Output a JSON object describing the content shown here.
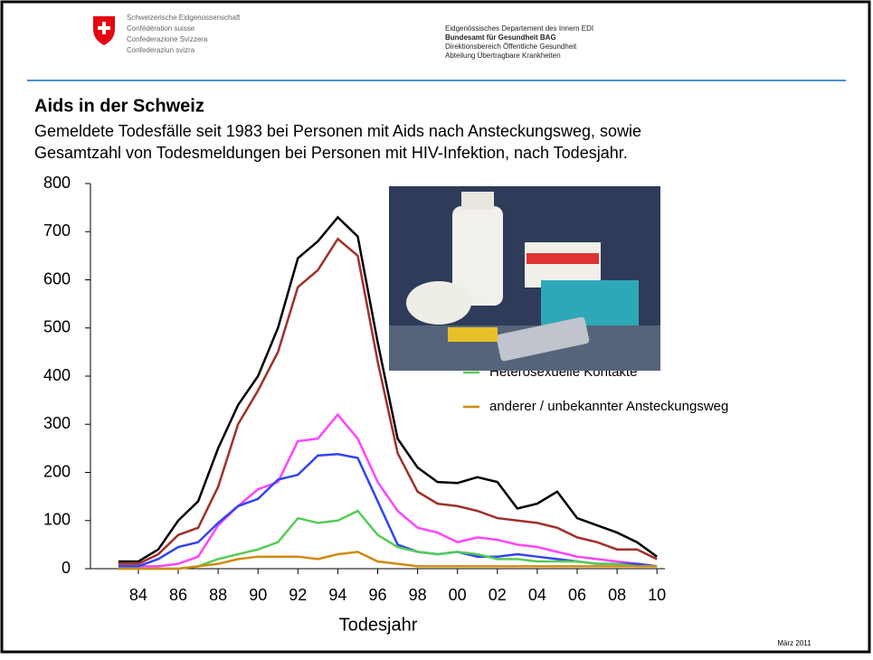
{
  "header": {
    "org_lines": [
      "Schweizerische Eidgenossenschaft",
      "Confédération suisse",
      "Confederazione Svizzera",
      "Confederaziun svizra"
    ],
    "dept_lines": [
      "Eidgenössisches Departement des Innern EDI",
      "Bundesamt für Gesundheit BAG",
      "Direktionsbereich Öffentliche Gesundheit",
      "Abteilung Übertragbare Krankheiten"
    ]
  },
  "footer": "März 2011",
  "chart_data": {
    "type": "line",
    "title": "Aids in der Schweiz",
    "subtitle": "Gemeldete Todesfälle seit 1983 bei Personen mit Aids nach Ansteckungsweg, sowie Gesamtzahl von Todesmeldungen bei Personen mit HIV-Infektion, nach Todesjahr.",
    "x_label": "Todesjahr",
    "x": [
      1983,
      1984,
      1985,
      1986,
      1987,
      1988,
      1989,
      1990,
      1991,
      1992,
      1993,
      1994,
      1995,
      1996,
      1997,
      1998,
      1999,
      2000,
      2001,
      2002,
      2003,
      2004,
      2005,
      2006,
      2007,
      2008,
      2009,
      2010
    ],
    "xlim": [
      1981.6,
      2010.4
    ],
    "xticks": [
      {
        "value": 1984,
        "label": "84"
      },
      {
        "value": 1986,
        "label": "86"
      },
      {
        "value": 1988,
        "label": "88"
      },
      {
        "value": 1990,
        "label": "90"
      },
      {
        "value": 1992,
        "label": "92"
      },
      {
        "value": 1994,
        "label": "94"
      },
      {
        "value": 1996,
        "label": "96"
      },
      {
        "value": 1998,
        "label": "98"
      },
      {
        "value": 2000,
        "label": "00"
      },
      {
        "value": 2002,
        "label": "02"
      },
      {
        "value": 2004,
        "label": "04"
      },
      {
        "value": 2006,
        "label": "06"
      },
      {
        "value": 2008,
        "label": "08"
      },
      {
        "value": 2010,
        "label": "10"
      }
    ],
    "ylim": [
      0,
      800
    ],
    "yticks": [
      0,
      100,
      200,
      300,
      400,
      500,
      600,
      700,
      800
    ],
    "series": [
      {
        "color": "#000000",
        "values": [
          15,
          15,
          40,
          100,
          140,
          250,
          340,
          400,
          500,
          645,
          680,
          730,
          690,
          470,
          270,
          210,
          180,
          178,
          190,
          180,
          125,
          135,
          160,
          105,
          90,
          75,
          55,
          25
        ]
      },
      {
        "color": "#a0302a",
        "values": [
          10,
          10,
          30,
          70,
          85,
          170,
          300,
          370,
          450,
          585,
          620,
          685,
          650,
          430,
          240,
          160,
          135,
          130,
          120,
          105,
          100,
          95,
          85,
          65,
          55,
          40,
          40,
          20
        ]
      },
      {
        "color": "#ff44ff",
        "values": [
          5,
          5,
          5,
          10,
          25,
          90,
          130,
          165,
          180,
          265,
          270,
          320,
          270,
          180,
          120,
          85,
          75,
          55,
          65,
          60,
          50,
          45,
          35,
          25,
          20,
          15,
          10,
          5
        ]
      },
      {
        "color": "#3344ee",
        "values": [
          5,
          5,
          20,
          45,
          55,
          95,
          130,
          145,
          185,
          195,
          235,
          238,
          230,
          140,
          50,
          35,
          30,
          35,
          25,
          25,
          30,
          25,
          20,
          15,
          10,
          10,
          10,
          5
        ]
      },
      {
        "name": "Heterosexuelle Kontakte",
        "color": "#55cc55",
        "values": [
          0,
          0,
          0,
          0,
          5,
          20,
          30,
          40,
          55,
          105,
          95,
          100,
          120,
          70,
          45,
          35,
          30,
          35,
          30,
          20,
          20,
          15,
          15,
          15,
          10,
          10,
          5,
          5
        ]
      },
      {
        "name": "anderer / unbekannter Ansteckungsweg",
        "color": "#d08a10",
        "values": [
          0,
          0,
          0,
          0,
          5,
          10,
          20,
          25,
          25,
          25,
          20,
          30,
          35,
          15,
          10,
          5,
          5,
          5,
          5,
          5,
          5,
          5,
          5,
          5,
          5,
          5,
          5,
          5
        ]
      }
    ]
  }
}
